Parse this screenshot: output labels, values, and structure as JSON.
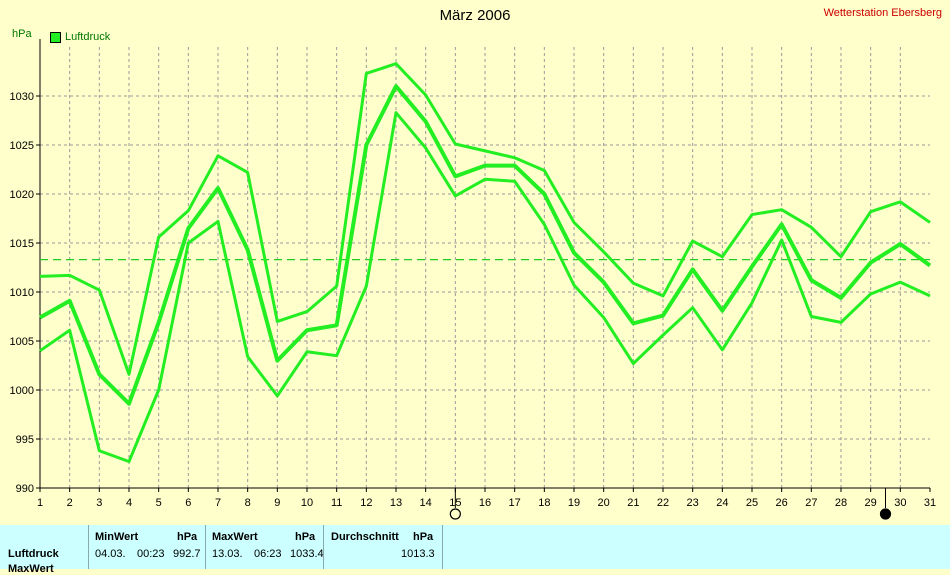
{
  "title": "März 2006",
  "station": "Wetterstation Ebersberg",
  "unit_label": "hPa",
  "legend_label": "Luftdruck",
  "colors": {
    "series": "#22ee22",
    "grid": "#999999",
    "avg": "#22cc22",
    "station": "#cc0000",
    "stats_bg": "#ccffff"
  },
  "chart_data": {
    "type": "line",
    "x": [
      1,
      2,
      3,
      4,
      5,
      6,
      7,
      8,
      9,
      10,
      11,
      12,
      13,
      14,
      15,
      16,
      17,
      18,
      19,
      20,
      21,
      22,
      23,
      24,
      25,
      26,
      27,
      28,
      29,
      30,
      31
    ],
    "xlim": [
      1,
      31
    ],
    "ylim": [
      990,
      1035
    ],
    "yticks": [
      990,
      995,
      1000,
      1005,
      1010,
      1015,
      1020,
      1025,
      1030
    ],
    "grid": true,
    "average_line": 1013.3,
    "moon_markers": [
      {
        "day": 15,
        "phase": "full"
      },
      {
        "day": 29.5,
        "phase": "new"
      }
    ],
    "series": [
      {
        "role": "max",
        "values": [
          1011.6,
          1011.7,
          1010.2,
          1001.6,
          1015.6,
          1018.3,
          1023.9,
          1022.2,
          1007.0,
          1008.0,
          1010.6,
          1032.3,
          1033.3,
          1030.1,
          1025.1,
          1024.4,
          1023.7,
          1022.4,
          1017.1,
          1014.1,
          1010.9,
          1009.6,
          1015.2,
          1013.6,
          1017.9,
          1018.4,
          1016.6,
          1013.6,
          1018.2,
          1019.2,
          1017.1
        ]
      },
      {
        "role": "mean",
        "values": [
          1007.4,
          1009.1,
          1001.6,
          998.6,
          1006.9,
          1016.5,
          1020.6,
          1014.3,
          1003.0,
          1006.1,
          1006.6,
          1025.0,
          1031.0,
          1027.4,
          1021.8,
          1022.9,
          1022.9,
          1020.0,
          1014.0,
          1011.0,
          1006.8,
          1007.6,
          1012.3,
          1008.1,
          1012.6,
          1016.9,
          1011.2,
          1009.4,
          1013.0,
          1014.9,
          1012.7
        ]
      },
      {
        "role": "min",
        "values": [
          1004.0,
          1006.1,
          993.8,
          992.7,
          1000.0,
          1015.0,
          1017.2,
          1003.4,
          999.4,
          1003.9,
          1003.5,
          1010.6,
          1028.3,
          1024.7,
          1019.8,
          1021.5,
          1021.3,
          1016.9,
          1010.7,
          1007.4,
          1002.7,
          1005.6,
          1008.4,
          1004.1,
          1008.9,
          1015.3,
          1007.5,
          1006.9,
          1009.8,
          1011.0,
          1009.6
        ]
      }
    ]
  },
  "stats": {
    "row_label": "Luftdruck",
    "row_label2": "MaxWert",
    "min": {
      "header": "MinWert",
      "unit": "hPa",
      "date": "04.03.",
      "time": "00:23",
      "value": "992.7"
    },
    "max": {
      "header": "MaxWert",
      "unit": "hPa",
      "date": "13.03.",
      "time": "06:23",
      "value": "1033.4"
    },
    "avg": {
      "header": "Durchschnitt",
      "unit": "hPa",
      "value": "1013.3"
    }
  }
}
